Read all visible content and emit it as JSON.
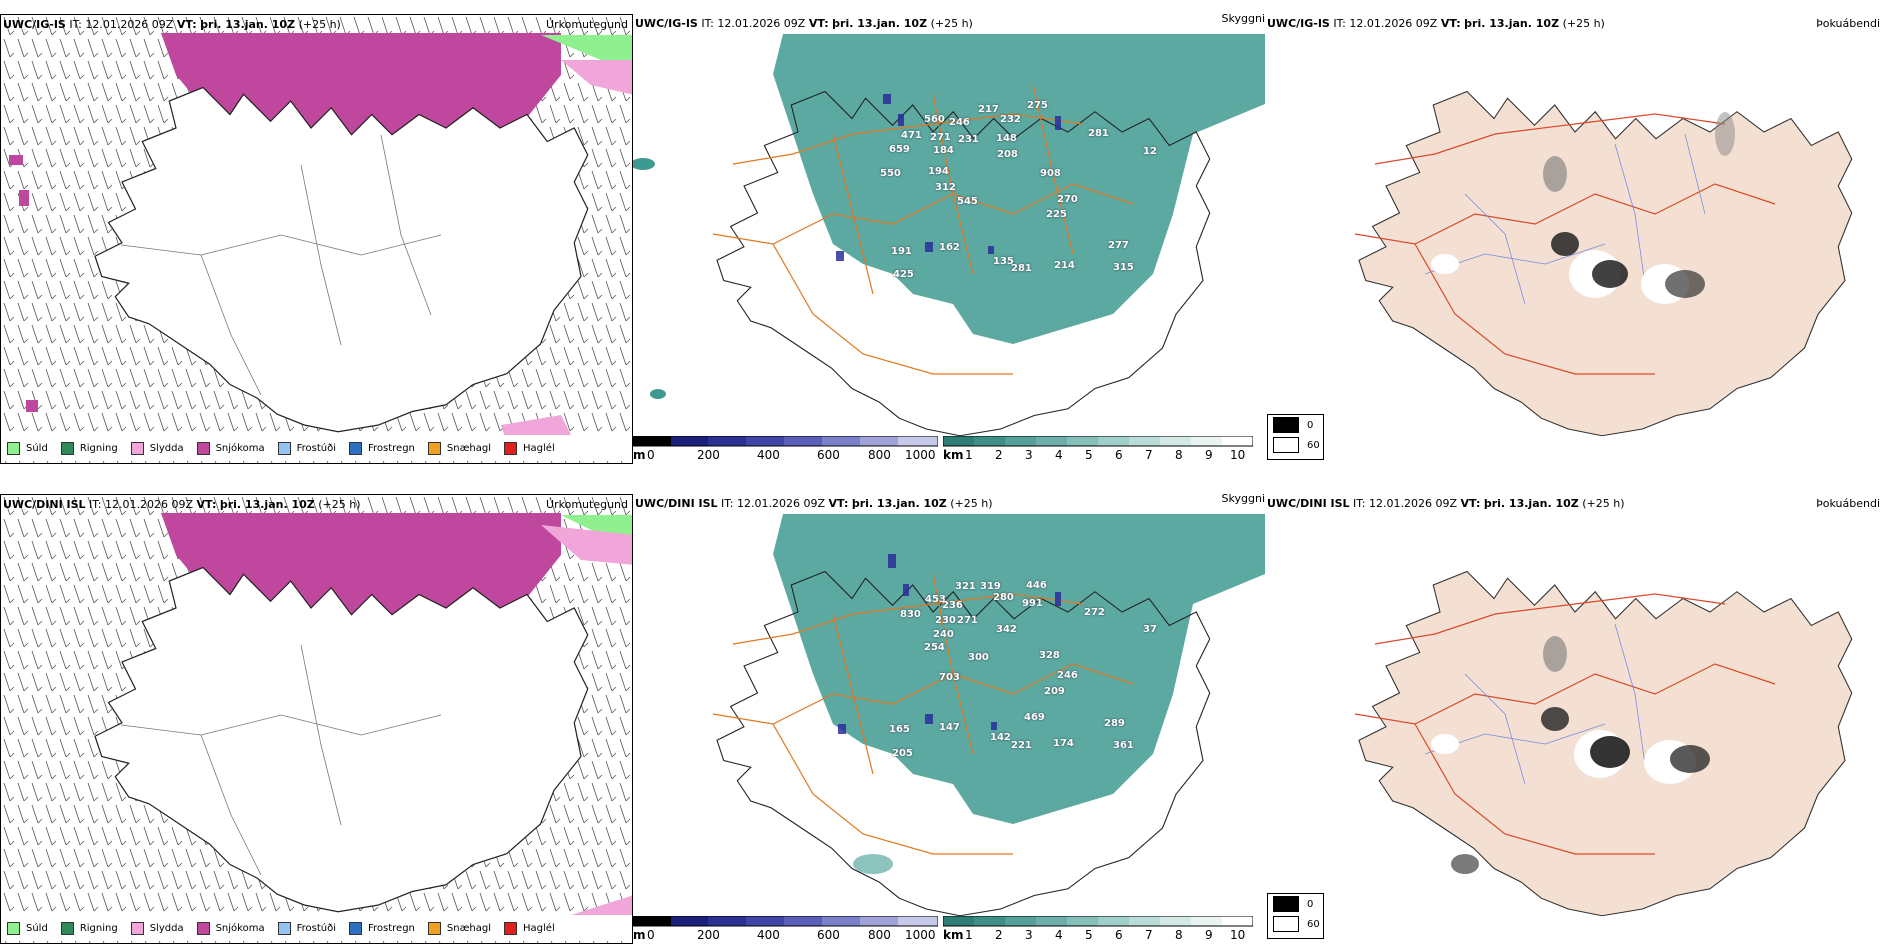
{
  "rows": [
    {
      "model": "UWC/IG-IS",
      "it_label": "IT:",
      "it": "12.01.2026 09Z",
      "vt_label": "VT:",
      "vt": "þri. 13.jan. 10Z",
      "lead": "(+25 h)",
      "precip_type_title": "Úrkomutegund",
      "visibility_title": "Skyggni",
      "fog_title": "Þokuábendi",
      "ceiling_values": [
        "471",
        "560",
        "246",
        "217",
        "232",
        "275",
        "281",
        "659",
        "271",
        "231",
        "148",
        "184",
        "208",
        "550",
        "194",
        "908",
        "312",
        "545",
        "270",
        "225",
        "277",
        "191",
        "162",
        "135",
        "281",
        "214",
        "315",
        "425",
        "12"
      ]
    },
    {
      "model": "UWC/DINI ISL",
      "it_label": "IT:",
      "it": "12.01.2026 09Z",
      "vt_label": "VT:",
      "vt": "þri. 13.jan. 10Z",
      "lead": "(+25 h)",
      "precip_type_title": "Úrkomutegund",
      "visibility_title": "Skyggni",
      "fog_title": "Þokuábendi",
      "ceiling_values": [
        "321",
        "319",
        "446",
        "453",
        "280",
        "830",
        "236",
        "991",
        "230",
        "271",
        "240",
        "342",
        "272",
        "254",
        "300",
        "37",
        "703",
        "328",
        "246",
        "209",
        "469",
        "289",
        "165",
        "147",
        "142",
        "221",
        "174",
        "361",
        "205"
      ]
    }
  ],
  "precip_legend": [
    {
      "label": "Súld",
      "color": "#90f090"
    },
    {
      "label": "Rigning",
      "color": "#2e8b57"
    },
    {
      "label": "Slydda",
      "color": "#f0a6d8"
    },
    {
      "label": "Snjókoma",
      "color": "#c0479e"
    },
    {
      "label": "Frostúði",
      "color": "#94c4f2"
    },
    {
      "label": "Frostregn",
      "color": "#2f6fc0"
    },
    {
      "label": "Snæhagl",
      "color": "#f0a020"
    },
    {
      "label": "Haglél",
      "color": "#e02020"
    }
  ],
  "ceiling_scale": {
    "unit": "m",
    "ticks": [
      "0",
      "200",
      "400",
      "600",
      "800",
      "1000"
    ]
  },
  "visibility_scale": {
    "unit": "km",
    "ticks": [
      "1",
      "2",
      "3",
      "4",
      "5",
      "6",
      "7",
      "8",
      "9",
      "10"
    ]
  },
  "fog_legend": [
    {
      "label": "0",
      "color": "#000000"
    },
    {
      "label": "60",
      "color": "#ffffff"
    }
  ]
}
